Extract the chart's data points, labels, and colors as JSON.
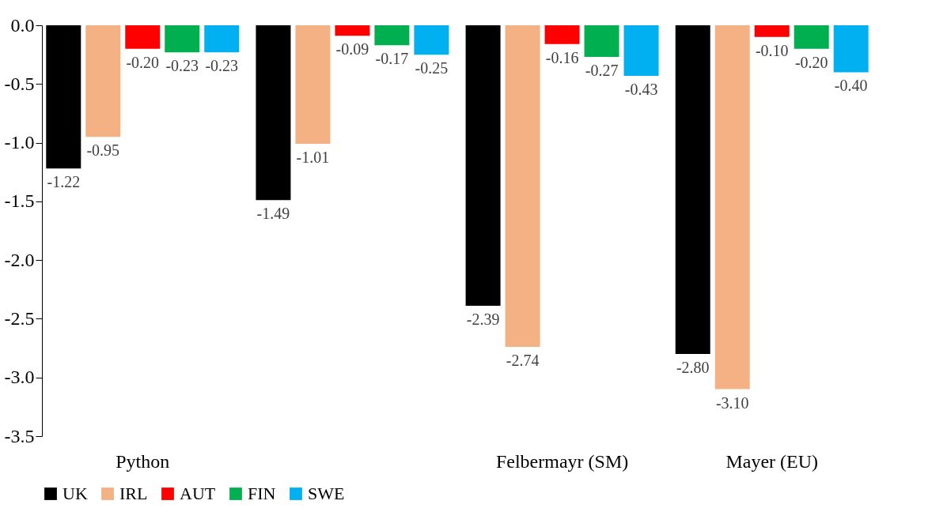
{
  "chart_data": {
    "type": "bar",
    "categories": [
      "Python",
      null,
      "Felbermayr (SM)",
      "Mayer (EU)"
    ],
    "ylim": [
      -3.5,
      0
    ],
    "yticks": [
      {
        "value": 0,
        "label": "0.0"
      },
      {
        "value": -0.5,
        "label": "-0.5"
      },
      {
        "value": -1,
        "label": "-1.0"
      },
      {
        "value": -1.5,
        "label": "-1.5"
      },
      {
        "value": -2,
        "label": "-2.0"
      },
      {
        "value": -2.5,
        "label": "-2.5"
      },
      {
        "value": -3,
        "label": "-3.0"
      },
      {
        "value": -3.5,
        "label": "-3.5"
      }
    ],
    "grid": false,
    "legend": "bottom",
    "series": [
      {
        "name": "UK",
        "color": "#000000",
        "values": [
          -1.22,
          -1.49,
          -2.39,
          -2.8
        ],
        "value_labels": [
          "-1.22",
          "-1.49",
          "-2.39",
          "-2.80"
        ]
      },
      {
        "name": "IRL",
        "color": "#f4b183",
        "values": [
          -0.95,
          -1.01,
          -2.74,
          -3.1
        ],
        "value_labels": [
          "-0.95",
          "-1.01",
          "-2.74",
          "-3.10"
        ]
      },
      {
        "name": "AUT",
        "color": "#ff0000",
        "values": [
          -0.2,
          -0.09,
          -0.16,
          -0.1
        ],
        "value_labels": [
          "-0.20",
          "-0.09",
          "-0.16",
          "-0.10"
        ]
      },
      {
        "name": "FIN",
        "color": "#00b050",
        "values": [
          -0.23,
          -0.17,
          -0.27,
          -0.2
        ],
        "value_labels": [
          "-0.23",
          "-0.17",
          "-0.27",
          "-0.20"
        ]
      },
      {
        "name": "SWE",
        "color": "#00b0f0",
        "values": [
          -0.23,
          -0.25,
          -0.43,
          -0.4
        ],
        "value_labels": [
          "-0.23",
          "-0.25",
          "-0.43",
          "-0.40"
        ]
      }
    ]
  }
}
